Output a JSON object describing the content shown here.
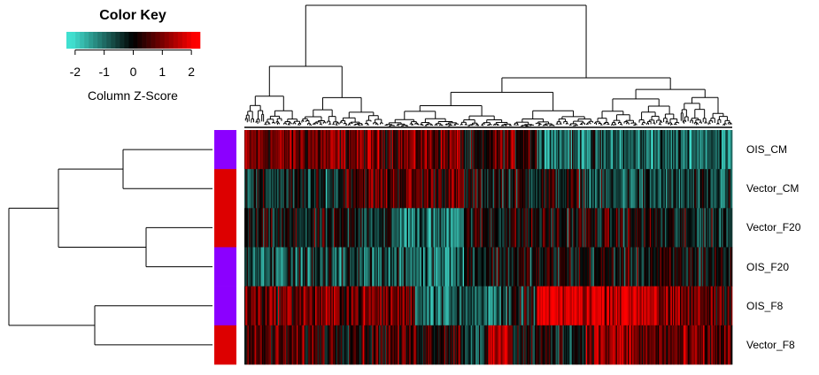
{
  "chart_data": {
    "type": "heatmap",
    "color_key": {
      "title": "Color Key",
      "xlabel": "Column Z-Score",
      "ticks": [
        "-2",
        "-1",
        "0",
        "1",
        "2"
      ],
      "tick_values": [
        -2,
        -1,
        0,
        1,
        2
      ],
      "range": [
        -2.3,
        2.3
      ],
      "low_color": "#40e0d0",
      "mid_color": "#000000",
      "high_color": "#ff0000"
    },
    "rows": [
      {
        "label": "OIS_CM",
        "group_color": "#8b00ff"
      },
      {
        "label": "Vector_CM",
        "group_color": "#dd0000"
      },
      {
        "label": "Vector_F20",
        "group_color": "#dd0000"
      },
      {
        "label": "OIS_F20",
        "group_color": "#8b00ff"
      },
      {
        "label": "OIS_F8",
        "group_color": "#8b00ff"
      },
      {
        "label": "Vector_F8",
        "group_color": "#dd0000"
      }
    ],
    "row_dendrogram": "((OIS_CM,Vector_CM),(Vector_F20,OIS_F20)),(OIS_F8,Vector_F8)",
    "column_dendrogram": true,
    "column_count": 420,
    "grid": false
  }
}
